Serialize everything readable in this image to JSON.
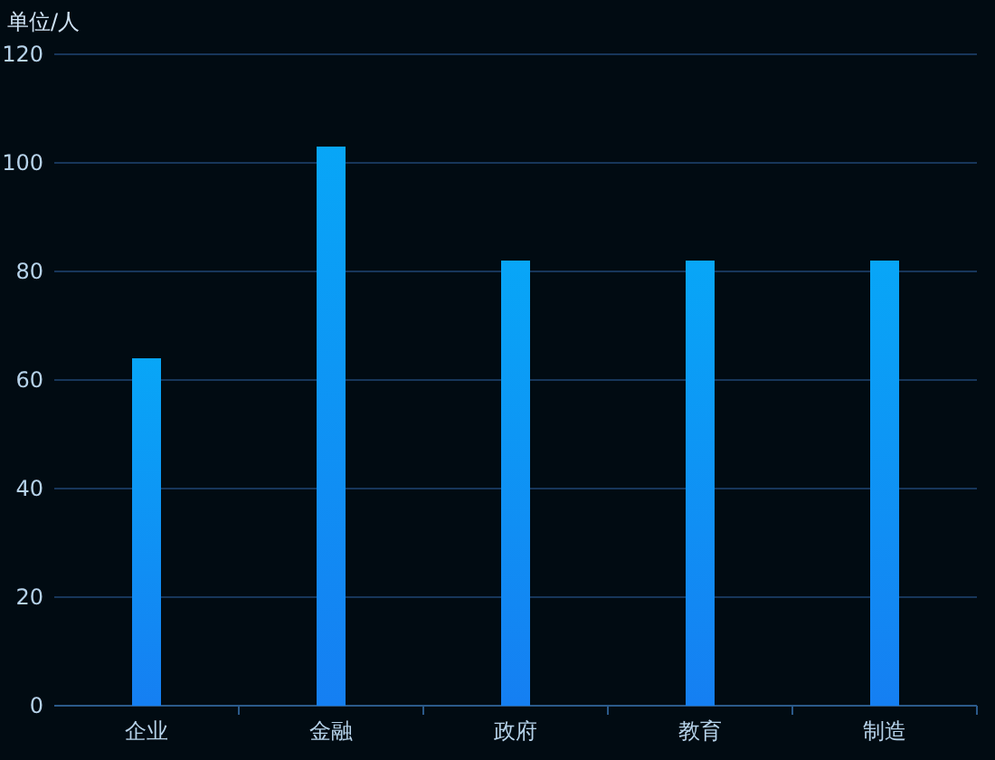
{
  "chart_data": {
    "type": "bar",
    "ylabel": "单位/人",
    "categories": [
      "企业",
      "金融",
      "政府",
      "教育",
      "制造"
    ],
    "values": [
      64,
      103,
      82,
      82,
      82
    ],
    "color": "#08a6f7",
    "ylim": [
      0,
      120
    ],
    "yticks": [
      0,
      20,
      40,
      60,
      80,
      100,
      120
    ],
    "grid": "y"
  }
}
